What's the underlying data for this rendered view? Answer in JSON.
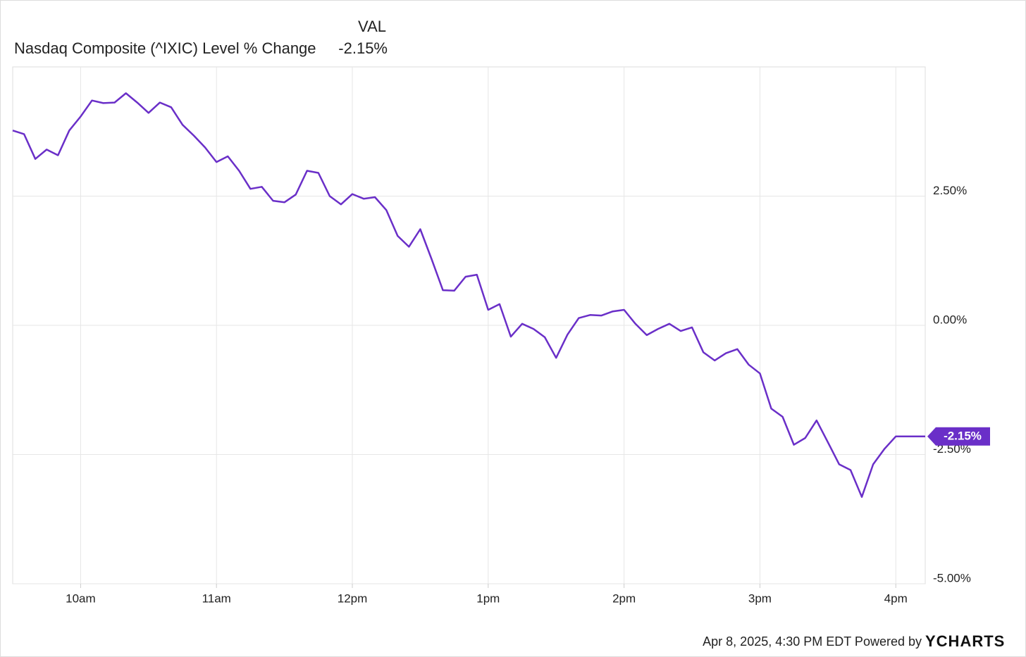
{
  "chart_data": {
    "type": "line",
    "title": "Nasdaq Composite (^IXIC) Level % Change",
    "legend": {
      "header": "VAL",
      "value_label": "-2.15%"
    },
    "footer": "Apr 8, 2025, 4:30 PM EDT Powered by",
    "brand": "YCHARTS",
    "x": [
      570,
      575,
      580,
      585,
      590,
      595,
      600,
      605,
      610,
      615,
      620,
      625,
      630,
      635,
      640,
      645,
      650,
      655,
      660,
      665,
      670,
      675,
      680,
      685,
      690,
      695,
      700,
      705,
      710,
      715,
      720,
      725,
      730,
      735,
      740,
      745,
      750,
      755,
      760,
      765,
      770,
      775,
      780,
      785,
      790,
      795,
      800,
      805,
      810,
      815,
      820,
      825,
      830,
      835,
      840,
      845,
      850,
      855,
      860,
      865,
      870,
      875,
      880,
      885,
      890,
      895,
      900,
      905,
      910,
      915,
      920,
      925,
      930,
      935,
      940,
      945,
      950,
      955,
      960,
      973
    ],
    "series": [
      {
        "name": "Nasdaq Composite (^IXIC) Level % Change",
        "color": "#6a2fc8",
        "values": [
          3.77,
          3.7,
          3.22,
          3.4,
          3.29,
          3.77,
          4.04,
          4.35,
          4.3,
          4.31,
          4.49,
          4.31,
          4.11,
          4.31,
          4.22,
          3.88,
          3.67,
          3.44,
          3.16,
          3.27,
          2.99,
          2.64,
          2.68,
          2.41,
          2.38,
          2.53,
          2.99,
          2.95,
          2.5,
          2.34,
          2.54,
          2.45,
          2.48,
          2.23,
          1.73,
          1.52,
          1.86,
          1.28,
          0.68,
          0.67,
          0.94,
          0.98,
          0.3,
          0.41,
          -0.22,
          0.03,
          -0.07,
          -0.23,
          -0.63,
          -0.18,
          0.14,
          0.2,
          0.19,
          0.27,
          0.3,
          0.03,
          -0.19,
          -0.07,
          0.03,
          -0.11,
          -0.04,
          -0.52,
          -0.68,
          -0.54,
          -0.46,
          -0.76,
          -0.93,
          -1.61,
          -1.77,
          -2.31,
          -2.18,
          -1.84,
          -2.26,
          -2.69,
          -2.8,
          -3.32,
          -2.69,
          -2.39,
          -2.15,
          -2.15
        ]
      }
    ],
    "xlim": [
      570,
      973
    ],
    "xticks": [
      {
        "value": 600,
        "label": "10am"
      },
      {
        "value": 660,
        "label": "11am"
      },
      {
        "value": 720,
        "label": "12pm"
      },
      {
        "value": 780,
        "label": "1pm"
      },
      {
        "value": 840,
        "label": "2pm"
      },
      {
        "value": 900,
        "label": "3pm"
      },
      {
        "value": 960,
        "label": "4pm"
      }
    ],
    "ylim": [
      -5,
      5
    ],
    "yticks": [
      {
        "value": 2.5,
        "label": "2.50%"
      },
      {
        "value": 0,
        "label": "0.00%"
      },
      {
        "value": -2.5,
        "label": "-2.50%"
      },
      {
        "value": -5,
        "label": "-5.00%"
      }
    ],
    "grid": true
  }
}
